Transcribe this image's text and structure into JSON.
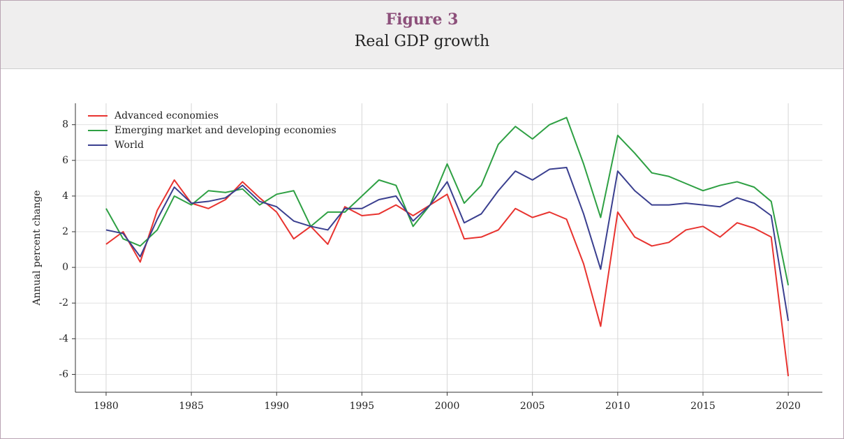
{
  "header": {
    "figure": "Figure 3",
    "title": "Real GDP growth"
  },
  "chart_data": {
    "type": "line",
    "ylabel": "Annual percent change",
    "x": [
      1980,
      1981,
      1982,
      1983,
      1984,
      1985,
      1986,
      1987,
      1988,
      1989,
      1990,
      1991,
      1992,
      1993,
      1994,
      1995,
      1996,
      1997,
      1998,
      1999,
      2000,
      2001,
      2002,
      2003,
      2004,
      2005,
      2006,
      2007,
      2008,
      2009,
      2010,
      2011,
      2012,
      2013,
      2014,
      2015,
      2016,
      2017,
      2018,
      2019,
      2020
    ],
    "series": [
      {
        "name": "Advanced economies",
        "color": "#e8332f",
        "values": [
          1.3,
          2.0,
          0.3,
          3.2,
          4.9,
          3.6,
          3.3,
          3.8,
          4.8,
          3.9,
          3.1,
          1.6,
          2.3,
          1.3,
          3.4,
          2.9,
          3.0,
          3.5,
          2.9,
          3.5,
          4.1,
          1.6,
          1.7,
          2.1,
          3.3,
          2.8,
          3.1,
          2.7,
          0.2,
          -3.3,
          3.1,
          1.7,
          1.2,
          1.4,
          2.1,
          2.3,
          1.7,
          2.5,
          2.2,
          1.7,
          -6.1
        ]
      },
      {
        "name": "Emerging market and developing economies",
        "color": "#2ea043",
        "values": [
          3.3,
          1.6,
          1.2,
          2.1,
          4.0,
          3.5,
          4.3,
          4.2,
          4.4,
          3.5,
          4.1,
          4.3,
          2.3,
          3.1,
          3.1,
          4.0,
          4.9,
          4.6,
          2.3,
          3.5,
          5.8,
          3.6,
          4.6,
          6.9,
          7.9,
          7.2,
          8.0,
          8.4,
          5.8,
          2.8,
          7.4,
          6.4,
          5.3,
          5.1,
          4.7,
          4.3,
          4.6,
          4.8,
          4.5,
          3.7,
          -1.0
        ]
      },
      {
        "name": "World",
        "color": "#3a3f8f",
        "values": [
          2.1,
          1.9,
          0.6,
          2.7,
          4.5,
          3.6,
          3.7,
          3.9,
          4.6,
          3.7,
          3.4,
          2.6,
          2.3,
          2.1,
          3.3,
          3.3,
          3.8,
          4.0,
          2.6,
          3.5,
          4.8,
          2.5,
          3.0,
          4.3,
          5.4,
          4.9,
          5.5,
          5.6,
          3.0,
          -0.1,
          5.4,
          4.3,
          3.5,
          3.5,
          3.6,
          3.5,
          3.4,
          3.9,
          3.6,
          2.9,
          -3.0
        ]
      }
    ],
    "xlim": [
      1978.2,
      2022
    ],
    "xticks": [
      1980,
      1985,
      1990,
      1995,
      2000,
      2005,
      2010,
      2015,
      2020
    ],
    "ylim": [
      -7,
      9.2
    ],
    "yticks": [
      -6,
      -4,
      -2,
      0,
      2,
      4,
      6,
      8
    ],
    "grid": true,
    "legend": "upper-left"
  }
}
